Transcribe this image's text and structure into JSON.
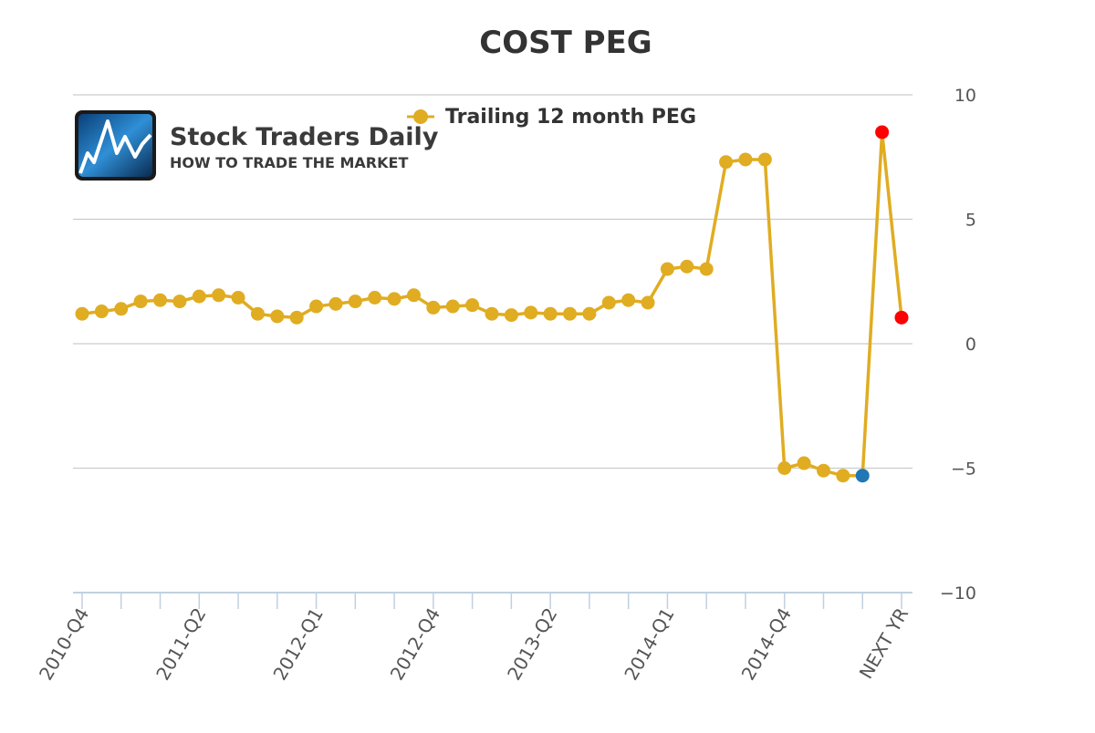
{
  "chart_data": {
    "type": "line",
    "title": "COST PEG",
    "logo": {
      "name": "Stock Traders Daily",
      "tagline": "HOW TO TRADE THE MARKET"
    },
    "legend_position": "top-center",
    "ylim": [
      -10,
      10
    ],
    "y_ticks": [
      10,
      5,
      0,
      -5,
      -10
    ],
    "y_axis_side": "right",
    "grid": "horizontal",
    "x_tick_labels": [
      "2010-Q4",
      "2011-Q2",
      "2012-Q1",
      "2012-Q4",
      "2013-Q2",
      "2014-Q1",
      "2014-Q4",
      "NEXT YR"
    ],
    "x_tick_label_indices": [
      0,
      6,
      12,
      18,
      24,
      30,
      36,
      42
    ],
    "point_count": 43,
    "series": [
      {
        "name": "Trailing 12 month PEG",
        "color": "#e0ac21",
        "values": [
          1.2,
          1.3,
          1.4,
          1.7,
          1.75,
          1.7,
          1.9,
          1.95,
          1.85,
          1.2,
          1.1,
          1.05,
          1.5,
          1.6,
          1.7,
          1.85,
          1.8,
          1.95,
          1.45,
          1.5,
          1.55,
          1.2,
          1.15,
          1.25,
          1.2,
          1.2,
          1.2,
          1.65,
          1.75,
          1.65,
          3.0,
          3.1,
          3.0,
          7.3,
          7.4,
          7.4,
          -5.0,
          -4.8,
          -5.1,
          -5.3,
          -5.3,
          8.5,
          1.05
        ]
      }
    ],
    "highlight_points": [
      {
        "index": 40,
        "color": "#1f77b4"
      },
      {
        "index": 41,
        "color": "#ff0000"
      },
      {
        "index": 42,
        "color": "#ff0000"
      }
    ]
  }
}
